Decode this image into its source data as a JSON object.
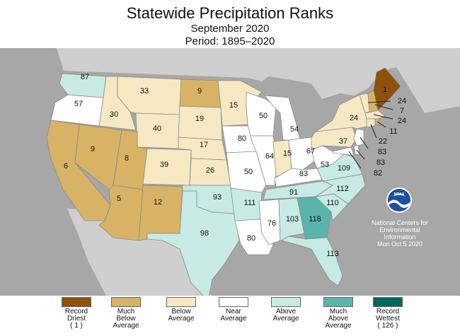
{
  "title": "Statewide Precipitation Ranks",
  "subtitle": "September 2020",
  "period": "Period: 1895–2020",
  "logo_text": "NOAA",
  "credit": {
    "org": "National Centers for\nEnvironmental\nInformation",
    "date": "Mon Oct  5 2020"
  },
  "colors": {
    "record_driest": "#8c510a",
    "much_below": "#d8b365",
    "below": "#f6e8c3",
    "near": "#ffffff",
    "above": "#c7eae5",
    "much_above": "#5ab4ac",
    "record_wettest": "#01665e",
    "background": "#a7a7a7",
    "land": "#cfcfcf"
  },
  "legend": [
    {
      "label": "Record\nDriest\n( 1 )",
      "color": "#8c510a"
    },
    {
      "label": "Much\nBelow\nAverage",
      "color": "#d8b365"
    },
    {
      "label": "Below\nAverage",
      "color": "#f6e8c3"
    },
    {
      "label": "Near\nAverage",
      "color": "#ffffff"
    },
    {
      "label": "Above\nAverage",
      "color": "#c7eae5"
    },
    {
      "label": "Much\nAbove\nAverage",
      "color": "#5ab4ac"
    },
    {
      "label": "Record\nWettest\n( 126 )",
      "color": "#01665e"
    }
  ],
  "states": [
    {
      "id": "WA",
      "rank": "87",
      "cat": "above"
    },
    {
      "id": "OR",
      "rank": "57",
      "cat": "near"
    },
    {
      "id": "CA",
      "rank": "6",
      "cat": "much_below"
    },
    {
      "id": "NV",
      "rank": "9",
      "cat": "much_below"
    },
    {
      "id": "ID",
      "rank": "30",
      "cat": "below"
    },
    {
      "id": "MT",
      "rank": "33",
      "cat": "below"
    },
    {
      "id": "WY",
      "rank": "40",
      "cat": "below"
    },
    {
      "id": "UT",
      "rank": "8",
      "cat": "much_below"
    },
    {
      "id": "AZ",
      "rank": "5",
      "cat": "much_below"
    },
    {
      "id": "CO",
      "rank": "39",
      "cat": "below"
    },
    {
      "id": "NM",
      "rank": "12",
      "cat": "much_below"
    },
    {
      "id": "ND",
      "rank": "9",
      "cat": "much_below"
    },
    {
      "id": "SD",
      "rank": "19",
      "cat": "below"
    },
    {
      "id": "NE",
      "rank": "17",
      "cat": "below"
    },
    {
      "id": "KS",
      "rank": "26",
      "cat": "below"
    },
    {
      "id": "OK",
      "rank": "93",
      "cat": "above"
    },
    {
      "id": "TX",
      "rank": "98",
      "cat": "above"
    },
    {
      "id": "MN",
      "rank": "15",
      "cat": "below"
    },
    {
      "id": "IA",
      "rank": "80",
      "cat": "near"
    },
    {
      "id": "MO",
      "rank": "50",
      "cat": "near"
    },
    {
      "id": "AR",
      "rank": "111",
      "cat": "above"
    },
    {
      "id": "LA",
      "rank": "80",
      "cat": "near"
    },
    {
      "id": "WI",
      "rank": "50",
      "cat": "near"
    },
    {
      "id": "IL",
      "rank": "64",
      "cat": "near"
    },
    {
      "id": "MI",
      "rank": "54",
      "cat": "near"
    },
    {
      "id": "IN",
      "rank": "15",
      "cat": "below"
    },
    {
      "id": "OH",
      "rank": "67",
      "cat": "near"
    },
    {
      "id": "KY",
      "rank": "83",
      "cat": "near"
    },
    {
      "id": "TN",
      "rank": "91",
      "cat": "above"
    },
    {
      "id": "MS",
      "rank": "76",
      "cat": "near"
    },
    {
      "id": "AL",
      "rank": "103",
      "cat": "above"
    },
    {
      "id": "GA",
      "rank": "118",
      "cat": "much_above"
    },
    {
      "id": "FL",
      "rank": "113",
      "cat": "above"
    },
    {
      "id": "SC",
      "rank": "110",
      "cat": "above"
    },
    {
      "id": "NC",
      "rank": "112",
      "cat": "above"
    },
    {
      "id": "VA",
      "rank": "109",
      "cat": "above"
    },
    {
      "id": "WV",
      "rank": "53",
      "cat": "near"
    },
    {
      "id": "PA",
      "rank": "37",
      "cat": "below"
    },
    {
      "id": "NY",
      "rank": "24",
      "cat": "below"
    },
    {
      "id": "VT",
      "rank": "24",
      "cat": "below"
    },
    {
      "id": "NH",
      "rank": "7",
      "cat": "much_below"
    },
    {
      "id": "ME",
      "rank": "1",
      "cat": "record_driest"
    },
    {
      "id": "MA",
      "rank": "24",
      "cat": "below"
    },
    {
      "id": "RI",
      "rank": "11",
      "cat": "much_below"
    },
    {
      "id": "CT",
      "rank": "22",
      "cat": "below"
    },
    {
      "id": "NJ",
      "rank": "83",
      "cat": "near"
    },
    {
      "id": "DE",
      "rank": "83",
      "cat": "near"
    },
    {
      "id": "MD",
      "rank": "82",
      "cat": "near"
    }
  ]
}
